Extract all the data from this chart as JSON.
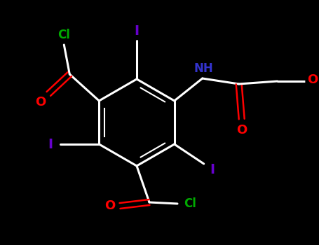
{
  "background_color": "#000000",
  "bond_color": "#ffffff",
  "atom_colors": {
    "I": "#6600cc",
    "Cl": "#00aa00",
    "O": "#ff0000",
    "N": "#3333cc",
    "C": "#ffffff",
    "H": "#ffffff"
  },
  "figsize": [
    4.55,
    3.5
  ],
  "dpi": 100
}
